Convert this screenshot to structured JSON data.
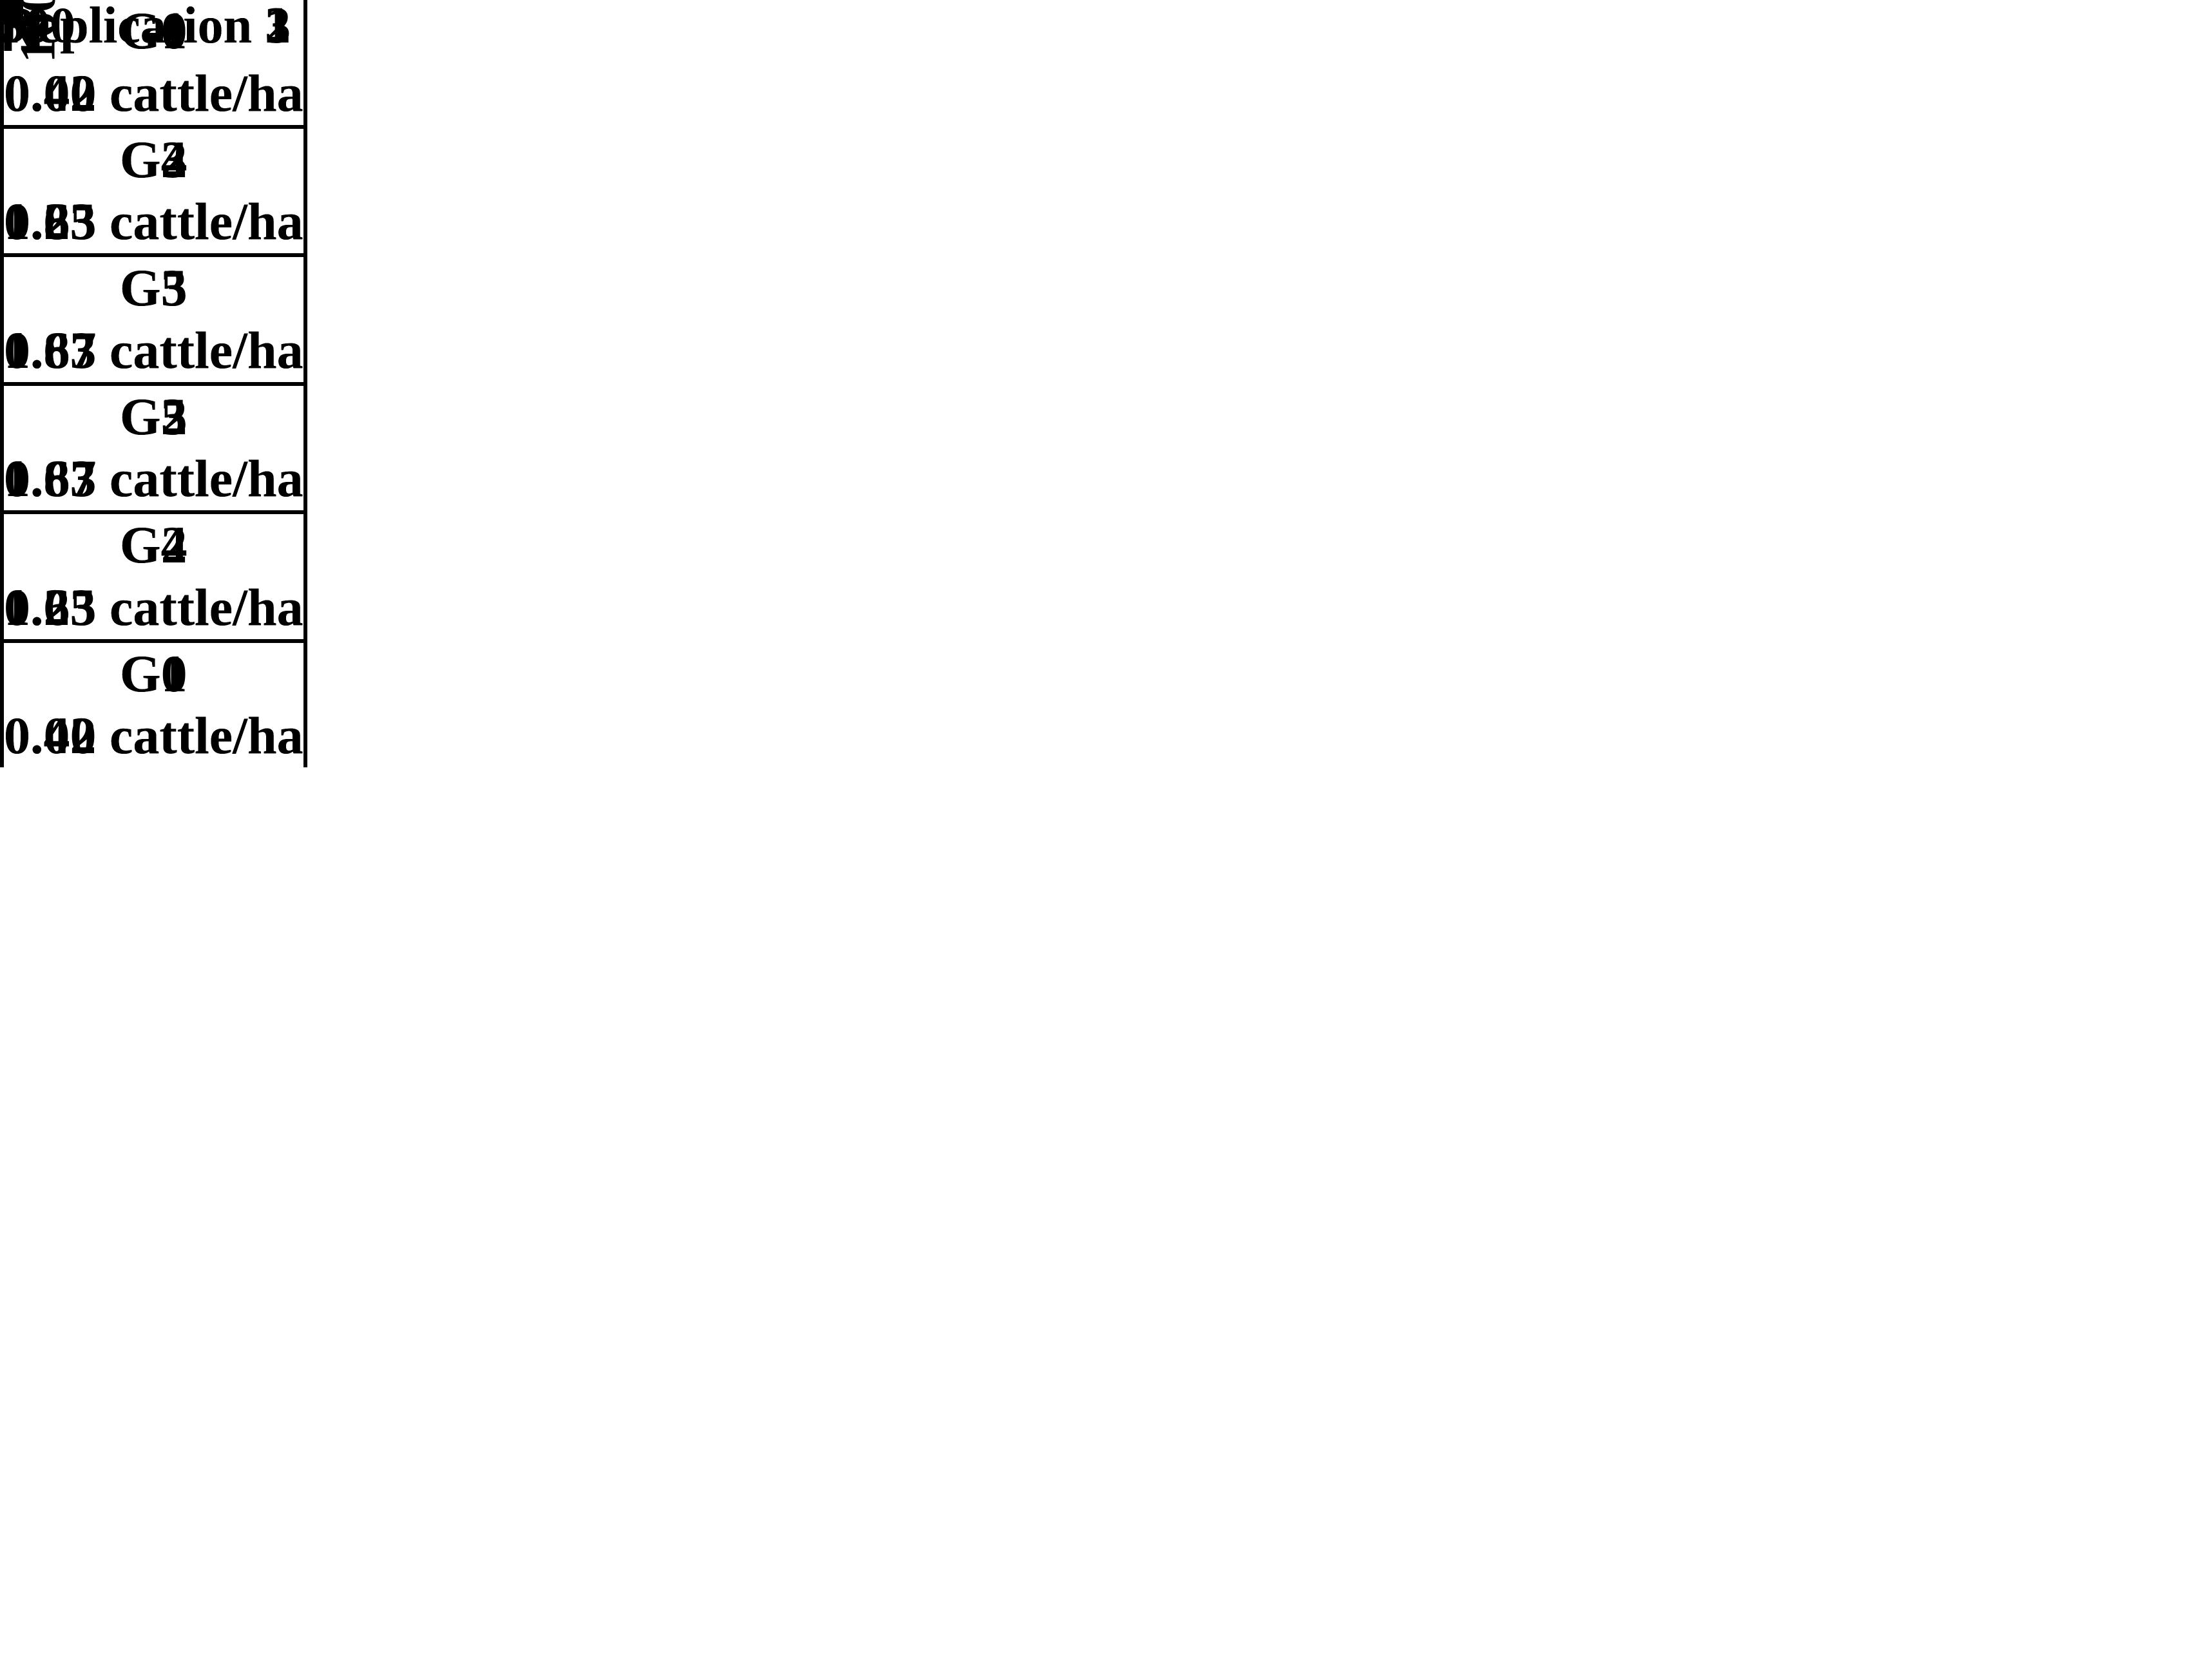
{
  "compass": {
    "label": "N"
  },
  "dimensions": {
    "plot_width": "300",
    "plot_height": "160"
  },
  "replications": [
    {
      "label": "Replication 1",
      "plots": [
        {
          "code": "G0",
          "rate": "0.00 cattle/ha"
        },
        {
          "code": "G3",
          "rate": "0.83 cattle/ha"
        },
        {
          "code": "G5",
          "rate": "1.67 cattle/ha"
        },
        {
          "code": "G2",
          "rate": "0.63 cattle/ha"
        },
        {
          "code": "G4",
          "rate": "1.25 cattle/ha"
        },
        {
          "code": "G1",
          "rate": "0.42 cattle/ha"
        }
      ]
    },
    {
      "label": "Replication 2",
      "plots": [
        {
          "code": "G1",
          "rate": "0.42 cattle/ha"
        },
        {
          "code": "G4",
          "rate": "1.25 cattle/ha"
        },
        {
          "code": "G3",
          "rate": "0.83 cattle/ha"
        },
        {
          "code": "G5",
          "rate": "1.67 cattle/ha"
        },
        {
          "code": "G2",
          "rate": "0.63 cattle/ha"
        },
        {
          "code": "G0",
          "rate": "0.00 cattle/ha"
        }
      ]
    },
    {
      "label": "Replication 3",
      "plots": [
        {
          "code": "G0",
          "rate": "0.00 cattle/ha"
        },
        {
          "code": "G2",
          "rate": "0.63 cattle/ha"
        },
        {
          "code": "G5",
          "rate": "1.67 cattle/ha"
        },
        {
          "code": "G3",
          "rate": "0.83 cattle/ha"
        },
        {
          "code": "G4",
          "rate": "1.25 cattle/ha"
        },
        {
          "code": "G1",
          "rate": "0.42 cattle/ha"
        }
      ]
    }
  ]
}
